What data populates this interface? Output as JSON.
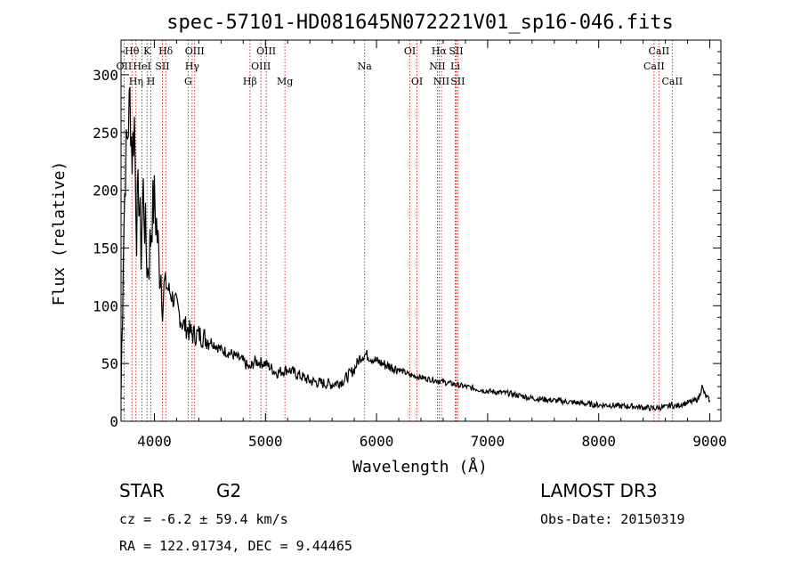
{
  "chart_data": {
    "type": "line",
    "title": "spec-57101-HD081645N072221V01_sp16-046.fits",
    "xlabel": "Wavelength (Å)",
    "ylabel": "Flux (relative)",
    "xlim": [
      3700,
      9100
    ],
    "ylim": [
      0,
      330
    ],
    "x_ticks": [
      4000,
      5000,
      6000,
      7000,
      8000,
      9000
    ],
    "y_ticks": [
      0,
      50,
      100,
      150,
      200,
      250,
      300
    ],
    "x_tick_labels": [
      "4000",
      "5000",
      "6000",
      "7000",
      "8000",
      "9000"
    ],
    "y_tick_labels": [
      "0",
      "50",
      "100",
      "150",
      "200",
      "250",
      "300"
    ],
    "grid": false,
    "series": [
      {
        "name": "spectrum",
        "x": [
          3700,
          3720,
          3740,
          3760,
          3780,
          3800,
          3820,
          3840,
          3860,
          3880,
          3900,
          3920,
          3940,
          3960,
          3980,
          4000,
          4020,
          4040,
          4060,
          4080,
          4100,
          4120,
          4150,
          4200,
          4250,
          4300,
          4340,
          4400,
          4500,
          4600,
          4700,
          4800,
          4860,
          4900,
          5000,
          5100,
          5200,
          5300,
          5400,
          5500,
          5600,
          5700,
          5800,
          5850,
          5900,
          5950,
          6000,
          6100,
          6200,
          6300,
          6400,
          6500,
          6563,
          6600,
          6700,
          6800,
          6900,
          7000,
          7100,
          7200,
          7300,
          7400,
          7500,
          7600,
          7700,
          7800,
          7900,
          8000,
          8100,
          8200,
          8300,
          8400,
          8500,
          8550,
          8600,
          8650,
          8700,
          8750,
          8800,
          8850,
          8900,
          8930,
          8960,
          9000
        ],
        "y": [
          20,
          150,
          220,
          250,
          280,
          230,
          260,
          170,
          200,
          150,
          200,
          160,
          130,
          150,
          180,
          190,
          170,
          140,
          130,
          105,
          120,
          115,
          110,
          100,
          85,
          80,
          75,
          75,
          70,
          62,
          58,
          52,
          45,
          52,
          50,
          42,
          45,
          40,
          35,
          33,
          32,
          35,
          45,
          55,
          58,
          55,
          52,
          48,
          45,
          40,
          38,
          36,
          35,
          34,
          32,
          30,
          28,
          26,
          25,
          24,
          22,
          20,
          19,
          18,
          17,
          16,
          15,
          14,
          14,
          13,
          13,
          12,
          11,
          12,
          12,
          14,
          13,
          15,
          16,
          17,
          20,
          30,
          22,
          18
        ]
      }
    ],
    "annotations": [
      {
        "label": "Hθ",
        "x": 3798,
        "row": "top"
      },
      {
        "label": "OII",
        "x": 3727,
        "row": "middle"
      },
      {
        "label": "Hη",
        "x": 3835,
        "row": "bottom"
      },
      {
        "label": "K",
        "x": 3934,
        "row": "top"
      },
      {
        "label": "H",
        "x": 3969,
        "row": "bottom"
      },
      {
        "label": "HeI",
        "x": 3889,
        "row": "middle"
      },
      {
        "label": "SII",
        "x": 4072,
        "row": "middle"
      },
      {
        "label": "Hδ",
        "x": 4102,
        "row": "top"
      },
      {
        "label": "OIII",
        "x": 4363,
        "row": "top"
      },
      {
        "label": "Hγ",
        "x": 4340,
        "row": "middle"
      },
      {
        "label": "G",
        "x": 4304,
        "row": "bottom"
      },
      {
        "label": "Hβ",
        "x": 4861,
        "row": "bottom"
      },
      {
        "label": "OIII",
        "x": 5007,
        "row": "top"
      },
      {
        "label": "OIII",
        "x": 4959,
        "row": "middle"
      },
      {
        "label": "Mg",
        "x": 5175,
        "row": "bottom"
      },
      {
        "label": "Na",
        "x": 5893,
        "row": "middle"
      },
      {
        "label": "OI",
        "x": 6300,
        "row": "top"
      },
      {
        "label": "OI",
        "x": 6364,
        "row": "bottom"
      },
      {
        "label": "Hα",
        "x": 6563,
        "row": "top"
      },
      {
        "label": "NII",
        "x": 6548,
        "row": "middle"
      },
      {
        "label": "NII",
        "x": 6584,
        "row": "bottom"
      },
      {
        "label": "SII",
        "x": 6716,
        "row": "top"
      },
      {
        "label": "Li",
        "x": 6708,
        "row": "middle"
      },
      {
        "label": "SII",
        "x": 6731,
        "row": "bottom"
      },
      {
        "label": "CaII",
        "x": 8542,
        "row": "top"
      },
      {
        "label": "CaII",
        "x": 8498,
        "row": "middle"
      },
      {
        "label": "CaII",
        "x": 8662,
        "row": "bottom"
      }
    ],
    "colors": {
      "spectrum": "#000000",
      "lines": "#cc0000",
      "axes": "#000000"
    }
  },
  "info": {
    "object_class": "STAR",
    "subclass": "G2",
    "survey": "LAMOST DR3",
    "cz": "cz = -6.2 ± 59.4 km/s",
    "obs_date": "Obs-Date: 20150319",
    "coords": "RA = 122.91734, DEC =   9.44465"
  }
}
